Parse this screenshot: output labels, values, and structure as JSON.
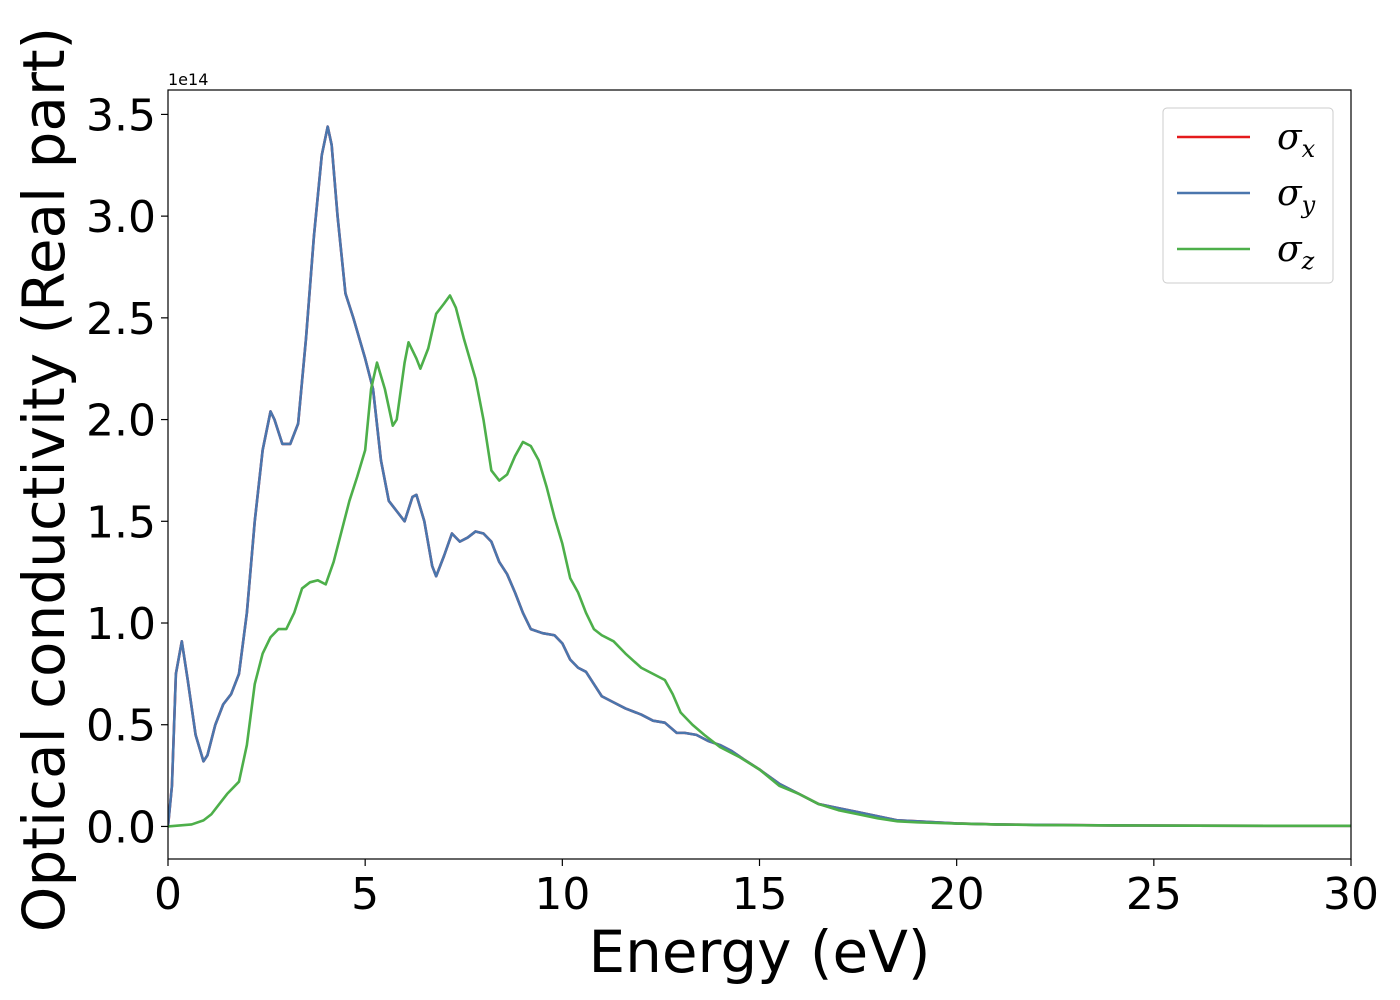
{
  "chart_data": {
    "type": "line",
    "title": "",
    "xlabel": "Energy (eV)",
    "ylabel": "Optical conductivity (Real part)",
    "y_offset_text": "1e14",
    "xlim": [
      0,
      30
    ],
    "ylim": [
      -0.16,
      3.62
    ],
    "xticks": [
      0,
      5,
      10,
      15,
      20,
      25,
      30
    ],
    "xtick_labels": [
      "0",
      "5",
      "10",
      "15",
      "20",
      "25",
      "30"
    ],
    "yticks": [
      0.0,
      0.5,
      1.0,
      1.5,
      2.0,
      2.5,
      3.0,
      3.5
    ],
    "ytick_labels": [
      "0.0",
      "0.5",
      "1.0",
      "1.5",
      "2.0",
      "2.5",
      "3.0",
      "3.5"
    ],
    "grid": false,
    "legend_position": "top-right",
    "series": [
      {
        "name": "σx",
        "symbol": "σ",
        "subscript": "x",
        "color": "#e41a1c",
        "x": [
          0,
          0.1,
          0.2,
          0.35,
          0.5,
          0.7,
          0.9,
          1.0,
          1.2,
          1.4,
          1.6,
          1.8,
          2.0,
          2.2,
          2.4,
          2.6,
          2.7,
          2.9,
          3.1,
          3.3,
          3.5,
          3.7,
          3.9,
          4.05,
          4.15,
          4.3,
          4.5,
          4.7,
          5.0,
          5.2,
          5.4,
          5.6,
          5.8,
          6.0,
          6.2,
          6.3,
          6.5,
          6.7,
          6.8,
          7.0,
          7.2,
          7.4,
          7.6,
          7.8,
          8.0,
          8.2,
          8.4,
          8.6,
          8.8,
          9.0,
          9.2,
          9.5,
          9.8,
          10.0,
          10.2,
          10.4,
          10.6,
          10.8,
          11.0,
          11.3,
          11.6,
          12.0,
          12.3,
          12.6,
          12.9,
          13.1,
          13.4,
          13.7,
          14.0,
          14.3,
          14.6,
          15.0,
          15.5,
          16.0,
          16.5,
          17.0,
          17.5,
          18.0,
          18.5,
          19.0,
          20.0,
          21.0,
          22.0,
          24.0,
          26.0,
          28.0,
          30.0
        ],
        "y": [
          0.0,
          0.2,
          0.75,
          0.91,
          0.72,
          0.45,
          0.32,
          0.35,
          0.5,
          0.6,
          0.65,
          0.75,
          1.05,
          1.5,
          1.85,
          2.04,
          2.0,
          1.88,
          1.88,
          1.98,
          2.4,
          2.9,
          3.3,
          3.44,
          3.35,
          3.0,
          2.62,
          2.5,
          2.3,
          2.15,
          1.8,
          1.6,
          1.55,
          1.5,
          1.62,
          1.63,
          1.5,
          1.28,
          1.23,
          1.33,
          1.44,
          1.4,
          1.42,
          1.45,
          1.44,
          1.4,
          1.3,
          1.24,
          1.15,
          1.05,
          0.97,
          0.95,
          0.94,
          0.9,
          0.82,
          0.78,
          0.76,
          0.7,
          0.64,
          0.61,
          0.58,
          0.55,
          0.52,
          0.51,
          0.46,
          0.46,
          0.45,
          0.42,
          0.4,
          0.37,
          0.33,
          0.28,
          0.21,
          0.16,
          0.11,
          0.09,
          0.07,
          0.05,
          0.03,
          0.025,
          0.015,
          0.01,
          0.008,
          0.005,
          0.004,
          0.003,
          0.003
        ]
      },
      {
        "name": "σy",
        "symbol": "σ",
        "subscript": "y",
        "color": "#4a76ad",
        "x": [
          0,
          0.1,
          0.2,
          0.35,
          0.5,
          0.7,
          0.9,
          1.0,
          1.2,
          1.4,
          1.6,
          1.8,
          2.0,
          2.2,
          2.4,
          2.6,
          2.7,
          2.9,
          3.1,
          3.3,
          3.5,
          3.7,
          3.9,
          4.05,
          4.15,
          4.3,
          4.5,
          4.7,
          5.0,
          5.2,
          5.4,
          5.6,
          5.8,
          6.0,
          6.2,
          6.3,
          6.5,
          6.7,
          6.8,
          7.0,
          7.2,
          7.4,
          7.6,
          7.8,
          8.0,
          8.2,
          8.4,
          8.6,
          8.8,
          9.0,
          9.2,
          9.5,
          9.8,
          10.0,
          10.2,
          10.4,
          10.6,
          10.8,
          11.0,
          11.3,
          11.6,
          12.0,
          12.3,
          12.6,
          12.9,
          13.1,
          13.4,
          13.7,
          14.0,
          14.3,
          14.6,
          15.0,
          15.5,
          16.0,
          16.5,
          17.0,
          17.5,
          18.0,
          18.5,
          19.0,
          20.0,
          21.0,
          22.0,
          24.0,
          26.0,
          28.0,
          30.0
        ],
        "y": [
          0.0,
          0.2,
          0.75,
          0.91,
          0.72,
          0.45,
          0.32,
          0.35,
          0.5,
          0.6,
          0.65,
          0.75,
          1.05,
          1.5,
          1.85,
          2.04,
          2.0,
          1.88,
          1.88,
          1.98,
          2.4,
          2.9,
          3.3,
          3.44,
          3.35,
          3.0,
          2.62,
          2.5,
          2.3,
          2.15,
          1.8,
          1.6,
          1.55,
          1.5,
          1.62,
          1.63,
          1.5,
          1.28,
          1.23,
          1.33,
          1.44,
          1.4,
          1.42,
          1.45,
          1.44,
          1.4,
          1.3,
          1.24,
          1.15,
          1.05,
          0.97,
          0.95,
          0.94,
          0.9,
          0.82,
          0.78,
          0.76,
          0.7,
          0.64,
          0.61,
          0.58,
          0.55,
          0.52,
          0.51,
          0.46,
          0.46,
          0.45,
          0.42,
          0.4,
          0.37,
          0.33,
          0.28,
          0.21,
          0.16,
          0.11,
          0.09,
          0.07,
          0.05,
          0.03,
          0.025,
          0.015,
          0.01,
          0.008,
          0.005,
          0.004,
          0.003,
          0.003
        ]
      },
      {
        "name": "σz",
        "symbol": "σ",
        "subscript": "z",
        "color": "#4daf4a",
        "x": [
          0,
          0.3,
          0.6,
          0.9,
          1.1,
          1.3,
          1.5,
          1.8,
          2.0,
          2.2,
          2.4,
          2.6,
          2.8,
          3.0,
          3.2,
          3.4,
          3.6,
          3.8,
          4.0,
          4.2,
          4.4,
          4.6,
          4.8,
          5.0,
          5.15,
          5.3,
          5.5,
          5.7,
          5.8,
          6.0,
          6.1,
          6.3,
          6.4,
          6.6,
          6.8,
          7.0,
          7.15,
          7.3,
          7.5,
          7.8,
          8.0,
          8.2,
          8.4,
          8.6,
          8.8,
          9.0,
          9.2,
          9.4,
          9.6,
          9.8,
          10.0,
          10.2,
          10.4,
          10.6,
          10.8,
          11.0,
          11.3,
          11.6,
          12.0,
          12.3,
          12.6,
          12.8,
          13.0,
          13.3,
          13.6,
          14.0,
          14.5,
          15.0,
          15.5,
          16.0,
          16.5,
          17.0,
          17.5,
          18.0,
          18.5,
          19.0,
          20.0,
          21.0,
          22.0,
          24.0,
          26.0,
          28.0,
          30.0
        ],
        "y": [
          0.0,
          0.005,
          0.01,
          0.03,
          0.06,
          0.11,
          0.16,
          0.22,
          0.4,
          0.7,
          0.85,
          0.93,
          0.97,
          0.97,
          1.05,
          1.17,
          1.2,
          1.21,
          1.19,
          1.3,
          1.45,
          1.6,
          1.72,
          1.85,
          2.15,
          2.28,
          2.15,
          1.97,
          2.0,
          2.28,
          2.38,
          2.3,
          2.25,
          2.35,
          2.52,
          2.57,
          2.61,
          2.55,
          2.4,
          2.2,
          2.0,
          1.75,
          1.7,
          1.73,
          1.82,
          1.89,
          1.87,
          1.8,
          1.67,
          1.52,
          1.39,
          1.22,
          1.15,
          1.05,
          0.97,
          0.94,
          0.91,
          0.85,
          0.78,
          0.75,
          0.72,
          0.65,
          0.56,
          0.5,
          0.45,
          0.39,
          0.34,
          0.28,
          0.2,
          0.16,
          0.11,
          0.08,
          0.06,
          0.04,
          0.025,
          0.02,
          0.014,
          0.01,
          0.007,
          0.005,
          0.004,
          0.003,
          0.003
        ]
      }
    ]
  }
}
